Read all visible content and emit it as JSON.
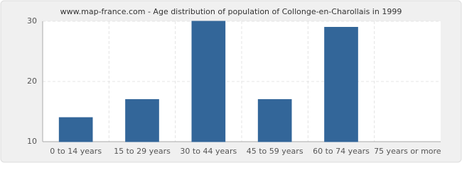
{
  "chart_data": {
    "type": "bar",
    "title": "www.map-france.com - Age distribution of population of Collonge-en-Charollais in 1999",
    "categories": [
      "0 to 14 years",
      "15 to 29 years",
      "30 to 44 years",
      "45 to 59 years",
      "60 to 74 years",
      "75 years or more"
    ],
    "values": [
      14,
      17,
      30,
      17,
      29,
      10
    ],
    "color": "#336699",
    "ylim": [
      10,
      30
    ],
    "yticks": [
      10,
      20,
      30
    ],
    "grid": true
  }
}
